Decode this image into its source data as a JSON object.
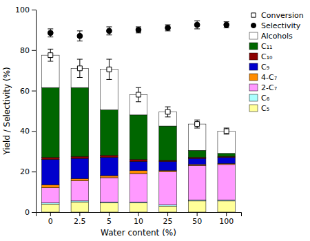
{
  "chart_data": {
    "type": "bar",
    "stacked": true,
    "categories": [
      "0",
      "2.5",
      "5",
      "10",
      "25",
      "50",
      "100"
    ],
    "xlabel": "Water content (%)",
    "ylabel": "Yield / Selectivity (%)",
    "ylim": [
      0,
      100
    ],
    "yticks": [
      0,
      20,
      40,
      60,
      80,
      100
    ],
    "legend": "right",
    "series": [
      {
        "name": "C₅",
        "color": "#ffff99",
        "values": [
          4.0,
          5.0,
          4.5,
          4.5,
          3.0,
          5.5,
          5.5
        ]
      },
      {
        "name": "C₆",
        "color": "#aaffff",
        "values": [
          0.5,
          0.5,
          0.5,
          0.5,
          0.5,
          0.5,
          0.5
        ]
      },
      {
        "name": "2-C₇",
        "color": "#ff99ff",
        "values": [
          7.5,
          10.0,
          12.0,
          14.0,
          16.5,
          17.0,
          17.5
        ]
      },
      {
        "name": "4-C₇",
        "color": "#ff8c00",
        "values": [
          1.5,
          1.0,
          1.0,
          1.5,
          0.5,
          0.5,
          0.5
        ]
      },
      {
        "name": "C₉",
        "color": "#0000cc",
        "values": [
          12.5,
          10.0,
          9.0,
          4.5,
          4.5,
          3.0,
          3.0
        ]
      },
      {
        "name": "C₁₀",
        "color": "#8b0000",
        "values": [
          1.0,
          1.0,
          1.0,
          1.0,
          0.5,
          0.5,
          0.5
        ]
      },
      {
        "name": "C₁₁",
        "color": "#006600",
        "values": [
          34.5,
          34.0,
          22.5,
          22.0,
          17.0,
          3.5,
          1.5
        ]
      },
      {
        "name": "Alcohols",
        "color": "#ffffff",
        "values": [
          16.0,
          9.5,
          20.0,
          10.0,
          7.0,
          13.0,
          11.0
        ]
      },
      {
        "name": "Conversion",
        "type": "scatter",
        "marker": "square",
        "color": "#ffffff",
        "values": [
          77.5,
          71.0,
          70.5,
          58.0,
          49.5,
          43.5,
          40.0
        ],
        "errors": [
          3.0,
          4.5,
          5.0,
          3.5,
          2.5,
          2.0,
          1.5
        ]
      },
      {
        "name": "Selectivity",
        "type": "scatter",
        "marker": "circle",
        "color": "#000000",
        "values": [
          88.5,
          87.0,
          89.5,
          90.0,
          91.0,
          92.5,
          92.5
        ],
        "errors": [
          2.0,
          2.5,
          2.0,
          1.5,
          1.5,
          2.0,
          1.5
        ]
      }
    ]
  }
}
